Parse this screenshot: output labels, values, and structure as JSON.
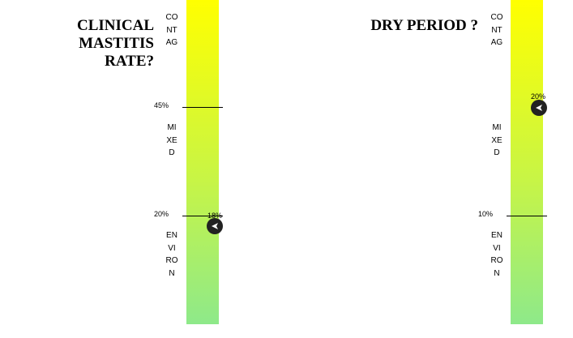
{
  "left_panel": {
    "title": "CLINICAL MASTITIS\nRATE?",
    "zones": [
      "CONTAG",
      "MIXED",
      "ENVIRON"
    ],
    "thresholds": [
      "45%",
      "20%"
    ],
    "marker_label": "18%",
    "marker_icon": "arrow-left-circle-icon"
  },
  "right_panel": {
    "title": "DRY PERIOD ?",
    "zones": [
      "CONTAG",
      "MIXED",
      "ENVIRON"
    ],
    "thresholds": [
      "10%"
    ],
    "marker_label": "20%",
    "marker_icon": "arrow-left-circle-icon"
  },
  "colors": {
    "bar_top": "#ffff00",
    "bar_bottom": "#8ee98a",
    "marker": "#222222"
  }
}
